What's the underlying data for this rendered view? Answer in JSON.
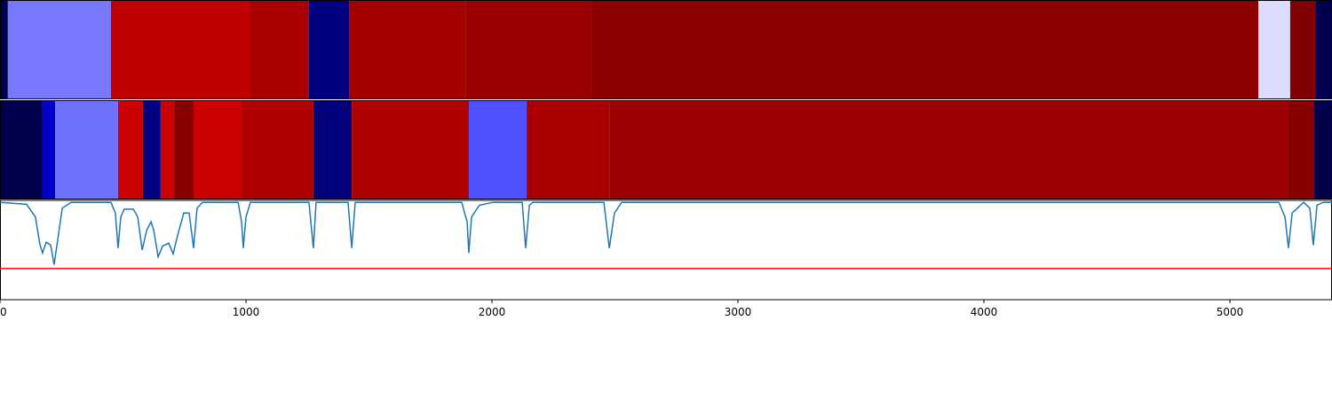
{
  "chart_data": {
    "type": "strips_line",
    "xlim": [
      0,
      5415
    ],
    "xticks": [
      0,
      1000,
      2000,
      3000,
      4000,
      5000
    ],
    "ylim": [
      0,
      1.02
    ],
    "strips": [
      {
        "bins": [
          0,
          32,
          451,
          1018,
          1256,
          1419,
          1892,
          2404,
          5116,
          5245,
          5350,
          5415
        ],
        "colors": [
          "#000050",
          "#7878ff",
          "#c00000",
          "#aa0000",
          "#000080",
          "#a40000",
          "#9a0000",
          "#8c0000",
          "#dcdcff",
          "#800000",
          "#000050"
        ]
      },
      {
        "bins": [
          0,
          173,
          224,
          480,
          581,
          653,
          708,
          787,
          982,
          1274,
          1430,
          1906,
          2141,
          2477,
          5238,
          5343,
          5415
        ],
        "colors": [
          "#00004c",
          "#0000c8",
          "#7070ff",
          "#cc0000",
          "#000080",
          "#cc0000",
          "#880000",
          "#cc0000",
          "#b00000",
          "#00007c",
          "#b00000",
          "#5050ff",
          "#a80000",
          "#9c0000",
          "#880000",
          "#00004c"
        ]
      }
    ],
    "series": [
      {
        "color": "#1f77b4",
        "x": [
          0,
          108,
          144,
          162,
          173,
          188,
          206,
          220,
          235,
          253,
          289,
          451,
          469,
          480,
          491,
          505,
          542,
          560,
          578,
          596,
          614,
          625,
          643,
          661,
          686,
          704,
          722,
          747,
          769,
          787,
          801,
          823,
          968,
          982,
          989,
          1000,
          1018,
          1256,
          1274,
          1285,
          1415,
          1430,
          1444,
          1877,
          1899,
          1906,
          1917,
          1949,
          2004,
          2123,
          2137,
          2152,
          2166,
          2455,
          2477,
          2498,
          2527,
          5199,
          5224,
          5238,
          5253,
          5300,
          5325,
          5339,
          5354,
          5379,
          5415
        ],
        "values": [
          1.0,
          0.98,
          0.85,
          0.57,
          0.48,
          0.59,
          0.56,
          0.36,
          0.62,
          0.94,
          1.0,
          1.0,
          0.89,
          0.53,
          0.85,
          0.93,
          0.93,
          0.85,
          0.51,
          0.71,
          0.8,
          0.71,
          0.44,
          0.55,
          0.58,
          0.47,
          0.66,
          0.89,
          0.89,
          0.53,
          0.94,
          1.0,
          1.0,
          0.8,
          0.53,
          0.85,
          1.0,
          1.0,
          0.53,
          1.0,
          1.0,
          0.53,
          1.0,
          1.0,
          0.8,
          0.48,
          0.85,
          0.97,
          1.0,
          1.0,
          0.53,
          0.97,
          1.0,
          1.0,
          0.53,
          0.89,
          1.0,
          1.0,
          0.85,
          0.53,
          0.89,
          1.0,
          0.94,
          0.56,
          0.97,
          1.0,
          1.0
        ]
      }
    ],
    "hline": {
      "value": 0.32,
      "color": "red"
    }
  }
}
